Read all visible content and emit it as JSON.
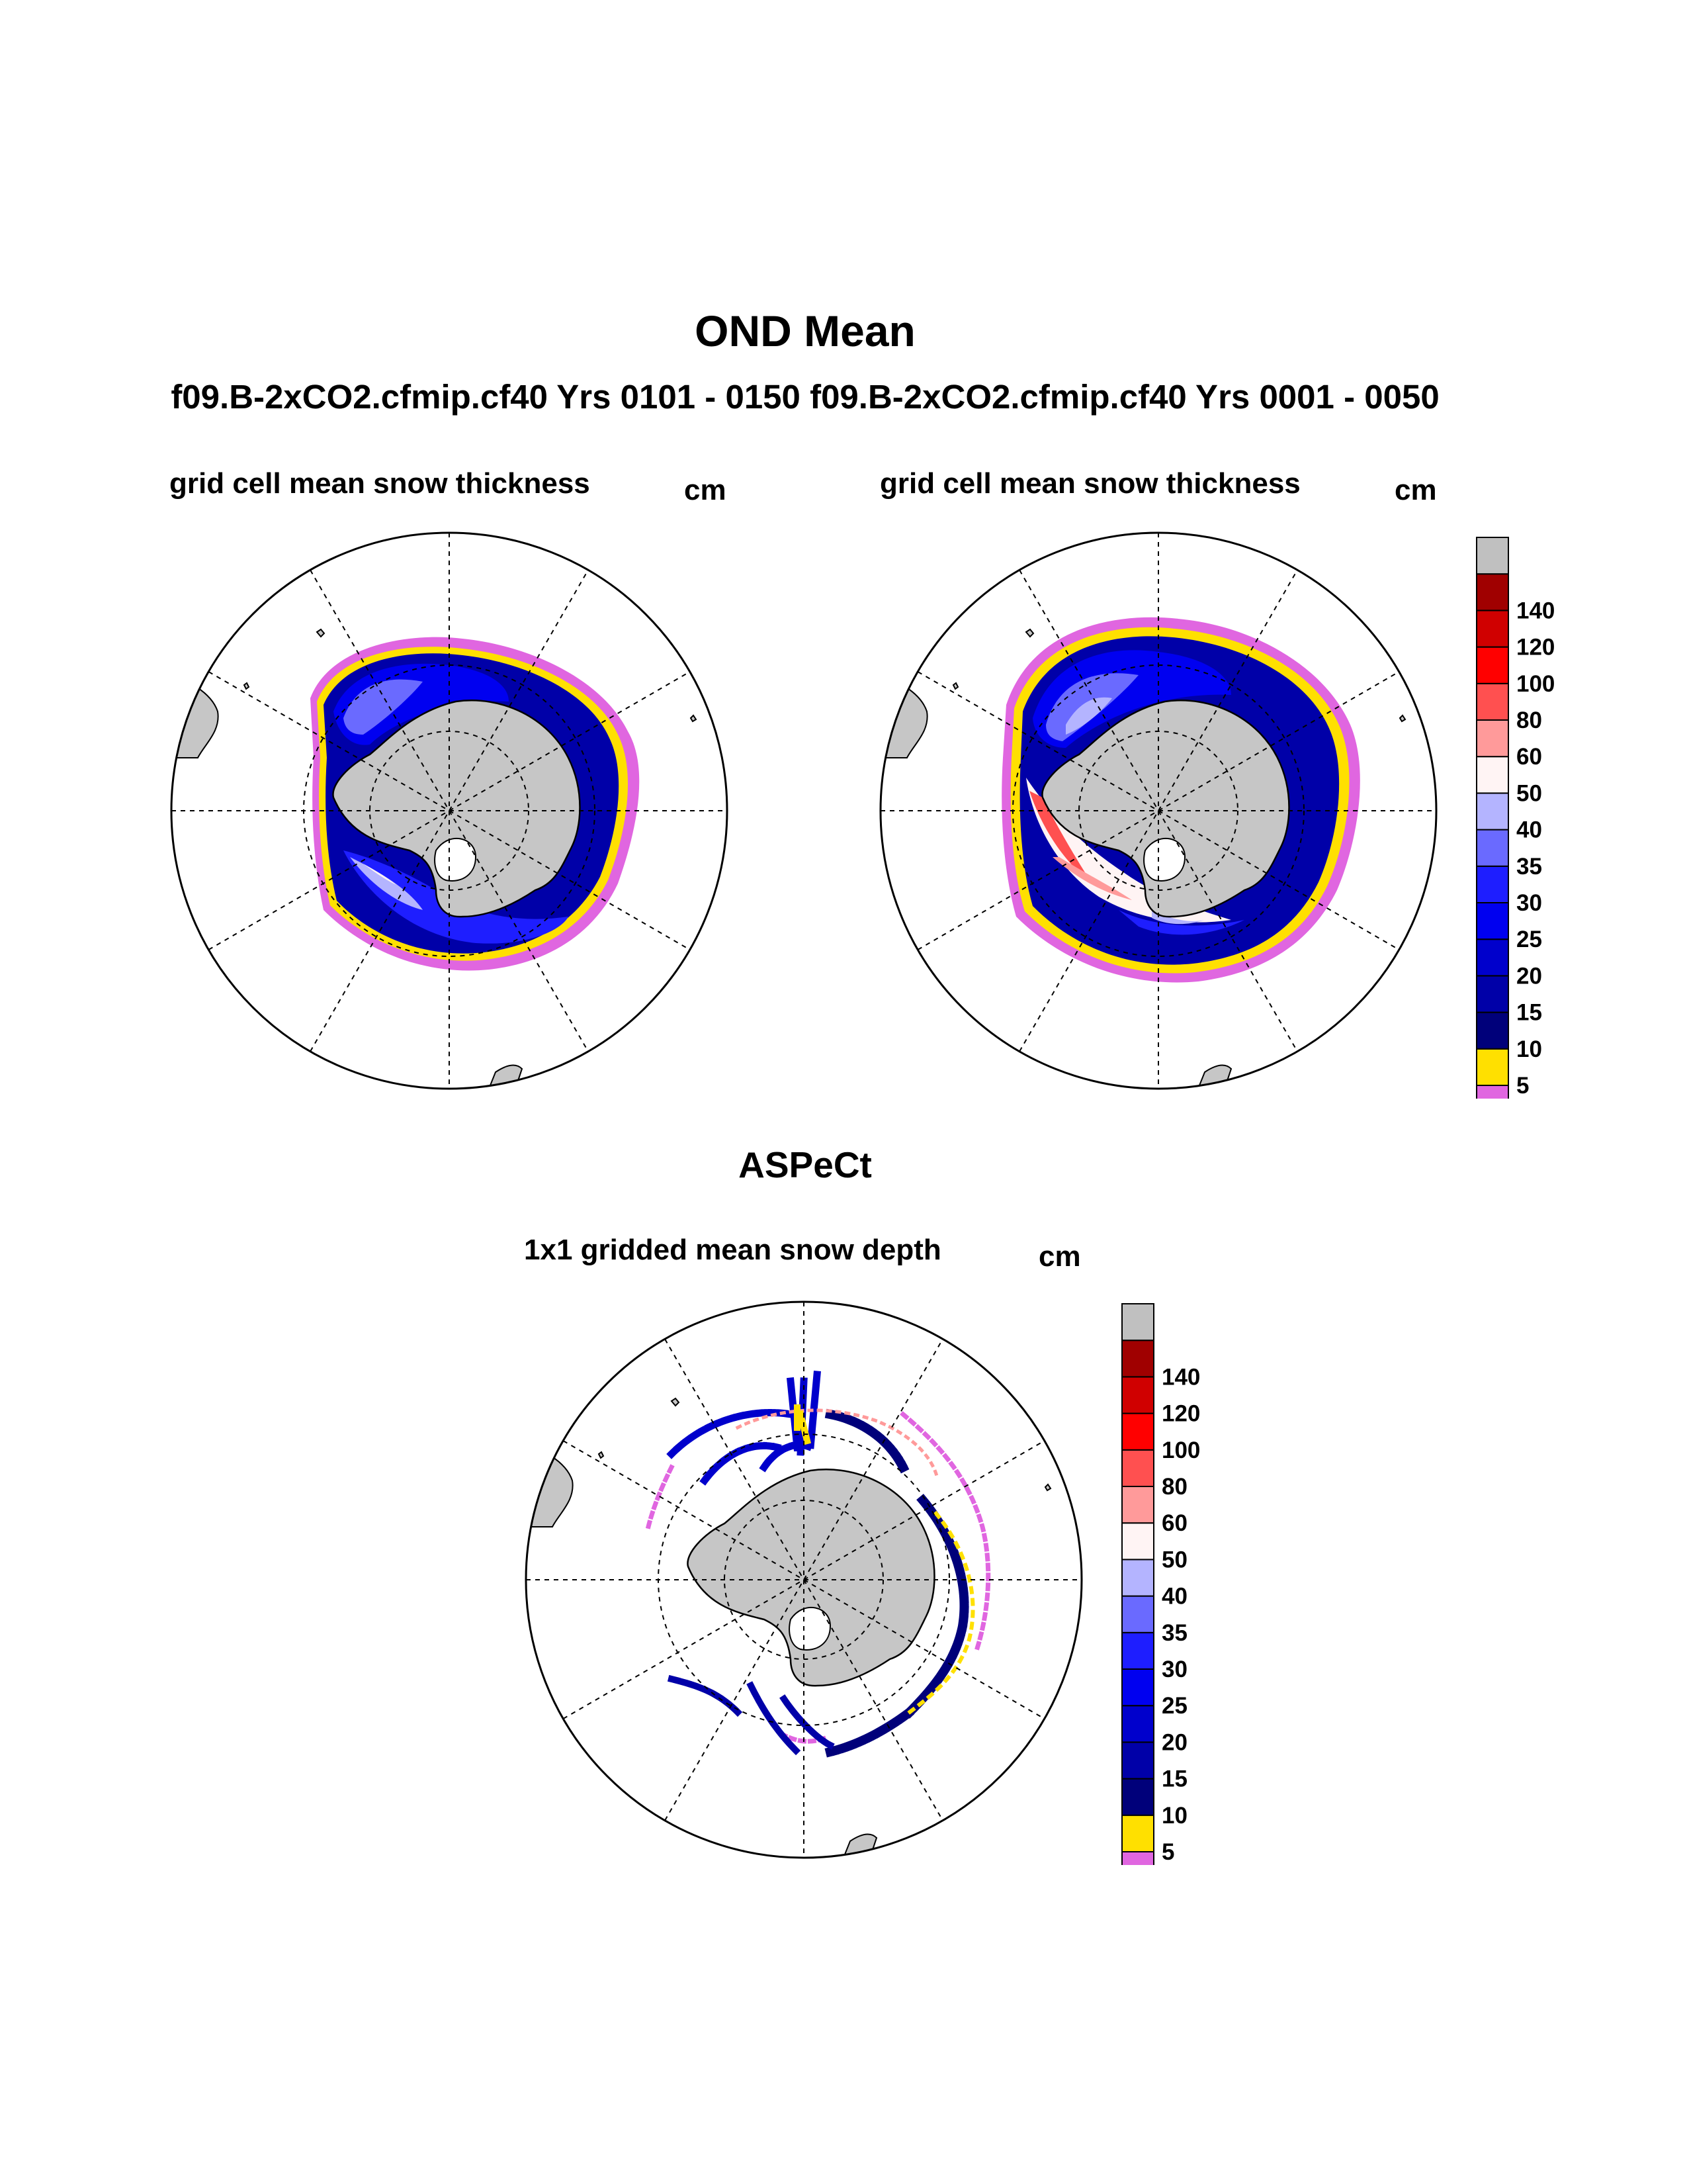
{
  "figure": {
    "title": "OND Mean",
    "subtitle": "f09.B-2xCO2.cfmip.cf40  Yrs 0101 - 0150 f09.B-2xCO2.cfmip.cf40  Yrs 0001 - 0050",
    "second_section_title": "ASPeCt"
  },
  "panels": {
    "left": {
      "title": "grid cell mean snow thickness",
      "units": "cm"
    },
    "right": {
      "title": "grid cell mean snow thickness",
      "units": "cm"
    },
    "bottom": {
      "title": "1x1 gridded mean snow depth",
      "units": "cm"
    }
  },
  "colorbar": {
    "levels": [
      "5",
      "10",
      "15",
      "20",
      "25",
      "30",
      "35",
      "40",
      "50",
      "60",
      "80",
      "100",
      "120",
      "140"
    ],
    "colors": [
      "#e066e0",
      "#ffe000",
      "#00007a",
      "#0000a8",
      "#0000cc",
      "#0000f0",
      "#1e1eff",
      "#6a6aff",
      "#b4b4ff",
      "#fff4f4",
      "#ff9a9a",
      "#ff5050",
      "#ff0000",
      "#d00000",
      "#a00000",
      "#c0c0c0"
    ]
  },
  "map_colors": {
    "land": "#c6c6c6",
    "grid": "#000000"
  }
}
